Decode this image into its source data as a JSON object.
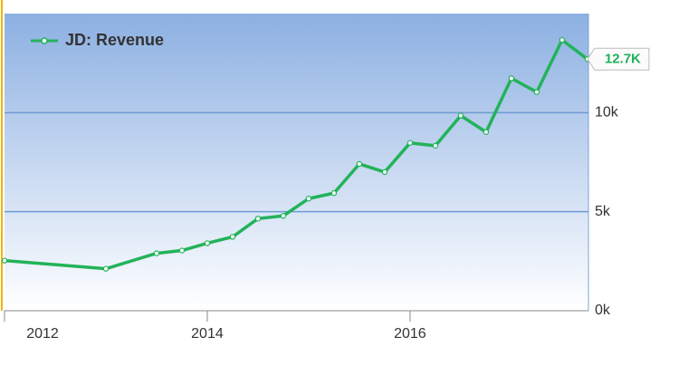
{
  "chart_data": {
    "type": "line",
    "x": [
      2012,
      2013,
      2013.5,
      2013.75,
      2014,
      2014.25,
      2014.5,
      2014.75,
      2015,
      2015.25,
      2015.5,
      2015.75,
      2016,
      2016.25,
      2016.5,
      2016.75,
      2017,
      2017.25,
      2017.5,
      2017.75
    ],
    "series": [
      {
        "name": "JD: Revenue",
        "color": "#22b35a",
        "values": [
          2530,
          2120,
          2900,
          3040,
          3410,
          3730,
          4650,
          4790,
          5660,
          5940,
          7410,
          7000,
          8470,
          8330,
          9850,
          9020,
          11730,
          11040,
          13670,
          12700
        ],
        "value_labels": [
          null,
          null,
          null,
          null,
          null,
          null,
          null,
          null,
          null,
          null,
          null,
          null,
          null,
          null,
          null,
          null,
          null,
          null,
          null,
          "12.7K"
        ]
      }
    ],
    "xlim": [
      2012,
      2017.76
    ],
    "xticks": [
      2012,
      2014,
      2016
    ],
    "ylim": [
      0,
      15000
    ],
    "yticks": [
      {
        "value": 0,
        "label": "0k"
      },
      {
        "value": 5000,
        "label": "5k"
      },
      {
        "value": 10000,
        "label": "10k"
      }
    ],
    "grid": true
  }
}
